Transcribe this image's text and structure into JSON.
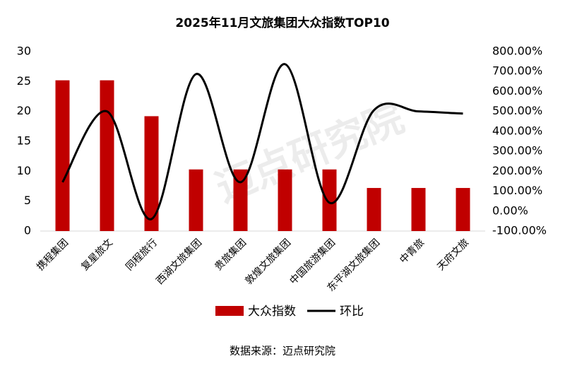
{
  "chart_data": {
    "type": "bar-line",
    "title": "2025年11月文旅集团大众指数TOP10",
    "categories": [
      "携程集团",
      "复星旅文",
      "同程旅行",
      "西湖文旅集团",
      "贵旅集团",
      "敦煌文旅集团",
      "中国旅游集团",
      "东平湖文旅集团",
      "中青旅",
      "天府文旅"
    ],
    "series": [
      {
        "name": "大众指数",
        "type": "bar",
        "color": "#c00000",
        "values": [
          25.2,
          25.2,
          19.2,
          10.3,
          10.3,
          10.3,
          10.3,
          7.2,
          7.2,
          7.2
        ]
      },
      {
        "name": "环比",
        "type": "line",
        "axis": "y2",
        "color": "#000000",
        "values": [
          145,
          500,
          -40,
          687,
          145,
          737,
          42,
          506,
          500,
          489
        ]
      }
    ],
    "ylim": [
      0,
      30
    ],
    "yticks": [
      0,
      5,
      10,
      15,
      20,
      25,
      30
    ],
    "y2lim": [
      -100,
      800
    ],
    "y2ticks": [
      {
        "value": -100,
        "label": "-100.00%"
      },
      {
        "value": 0,
        "label": "0.00%"
      },
      {
        "value": 100,
        "label": "100.00%"
      },
      {
        "value": 200,
        "label": "200.00%"
      },
      {
        "value": 300,
        "label": "300.00%"
      },
      {
        "value": 400,
        "label": "400.00%"
      },
      {
        "value": 500,
        "label": "500.00%"
      },
      {
        "value": 600,
        "label": "600.00%"
      },
      {
        "value": 700,
        "label": "700.00%"
      },
      {
        "value": 800,
        "label": "800.00%"
      }
    ],
    "legend": "bottom",
    "source": "数据来源：迈点研究院",
    "watermark": "迈点研究院"
  }
}
